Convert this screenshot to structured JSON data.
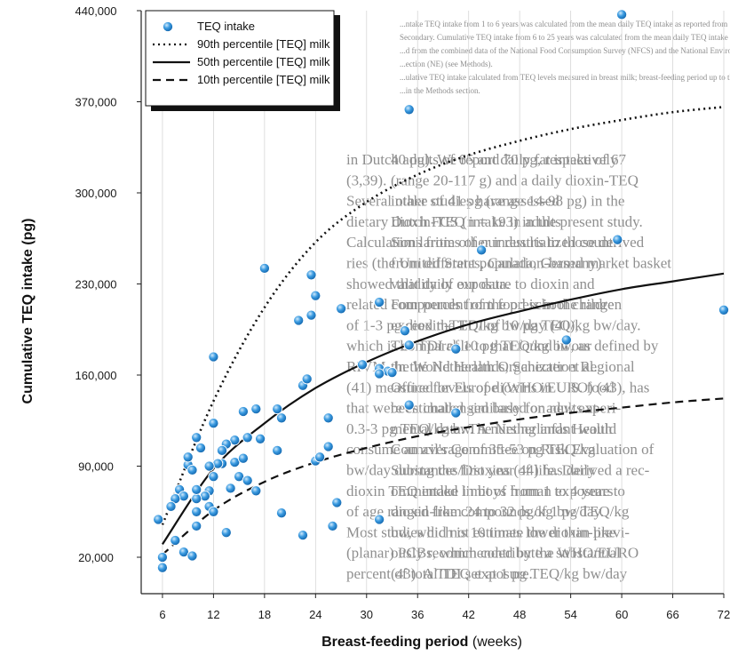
{
  "chart_data": {
    "type": "scatter",
    "xlabel_bold": "Breast-feeding period",
    "xlabel_unit": " (weeks)",
    "ylabel": "Cumulative TEQ intake (pg)",
    "xlim": [
      3.5,
      72
    ],
    "ylim": [
      -8000,
      440000
    ],
    "x_ticks": [
      6,
      12,
      18,
      24,
      30,
      36,
      42,
      48,
      54,
      60,
      66,
      72
    ],
    "x_tick_labels": [
      "6",
      "12",
      "18",
      "24",
      "30",
      "36",
      "42",
      "48",
      "54",
      "60",
      "66",
      "72"
    ],
    "y_ticks": [
      20000,
      90000,
      160000,
      230000,
      300000,
      370000,
      440000
    ],
    "y_tick_labels": [
      "20,000",
      "90,000",
      "160,000",
      "230,000",
      "300,000",
      "370,000",
      "440,000"
    ],
    "legend_position": "top-left",
    "legend": [
      {
        "label": "TEQ intake",
        "style": "marker"
      },
      {
        "label": "90th percentile [TEQ] milk",
        "style": "dotted"
      },
      {
        "label": "50th percentile [TEQ] milk",
        "style": "solid"
      },
      {
        "label": "10th percentile [TEQ] milk",
        "style": "dashed"
      }
    ],
    "series": [
      {
        "name": "TEQ intake",
        "points": [
          [
            60,
            437000
          ],
          [
            35,
            364000
          ],
          [
            43.5,
            256000
          ],
          [
            59.5,
            264000
          ],
          [
            72,
            210000
          ],
          [
            18,
            242000
          ],
          [
            23.5,
            237000
          ],
          [
            24,
            221000
          ],
          [
            23.5,
            206000
          ],
          [
            22,
            202000
          ],
          [
            27,
            211000
          ],
          [
            31.5,
            216000
          ],
          [
            34.5,
            194000
          ],
          [
            35,
            183000
          ],
          [
            40.5,
            180000
          ],
          [
            53.5,
            187000
          ],
          [
            29.5,
            168000
          ],
          [
            31.5,
            165000
          ],
          [
            32.5,
            163000
          ],
          [
            31.5,
            161000
          ],
          [
            33,
            162000
          ],
          [
            12,
            174000
          ],
          [
            22.5,
            152000
          ],
          [
            23,
            157000
          ],
          [
            35,
            137000
          ],
          [
            40.5,
            131000
          ],
          [
            25.5,
            127000
          ],
          [
            12,
            123000
          ],
          [
            19.5,
            134000
          ],
          [
            17,
            134000
          ],
          [
            15.5,
            132000
          ],
          [
            19.5,
            102000
          ],
          [
            20,
            127000
          ],
          [
            16,
            112000
          ],
          [
            17.5,
            111000
          ],
          [
            14.5,
            110000
          ],
          [
            13.5,
            107000
          ],
          [
            13,
            102000
          ],
          [
            14.5,
            93000
          ],
          [
            15,
            82000
          ],
          [
            15.5,
            96000
          ],
          [
            16,
            79000
          ],
          [
            14,
            73000
          ],
          [
            13,
            92000
          ],
          [
            12.5,
            92000
          ],
          [
            11.5,
            90000
          ],
          [
            12,
            82000
          ],
          [
            10.5,
            104000
          ],
          [
            10,
            112000
          ],
          [
            11.5,
            71000
          ],
          [
            11,
            67000
          ],
          [
            11.5,
            59000
          ],
          [
            10,
            55000
          ],
          [
            10,
            65000
          ],
          [
            10,
            72000
          ],
          [
            9,
            91000
          ],
          [
            9,
            97000
          ],
          [
            9.5,
            87000
          ],
          [
            8,
            72000
          ],
          [
            8.5,
            67000
          ],
          [
            10,
            44000
          ],
          [
            12,
            55000
          ],
          [
            13.5,
            39000
          ],
          [
            7.5,
            65000
          ],
          [
            7,
            59000
          ],
          [
            5.5,
            49000
          ],
          [
            7.5,
            33000
          ],
          [
            8.5,
            24000
          ],
          [
            9.5,
            21000
          ],
          [
            6,
            12000
          ],
          [
            6,
            20000
          ],
          [
            17,
            71000
          ],
          [
            20,
            54000
          ],
          [
            24,
            94000
          ],
          [
            24.5,
            97000
          ],
          [
            25.5,
            105000
          ],
          [
            26,
            44000
          ],
          [
            26.5,
            62000
          ],
          [
            22.5,
            37000
          ],
          [
            31.5,
            49000
          ]
        ]
      },
      {
        "name": "90th percentile [TEQ] milk",
        "points": [
          [
            6,
            45000
          ],
          [
            12,
            140000
          ],
          [
            18,
            212000
          ],
          [
            24,
            262000
          ],
          [
            30,
            293000
          ],
          [
            36,
            314000
          ],
          [
            42,
            329000
          ],
          [
            48,
            340000
          ],
          [
            54,
            349000
          ],
          [
            60,
            356000
          ],
          [
            66,
            362000
          ],
          [
            72,
            366000
          ]
        ]
      },
      {
        "name": "50th percentile [TEQ] milk",
        "points": [
          [
            6,
            30000
          ],
          [
            12,
            88000
          ],
          [
            18,
            123000
          ],
          [
            24,
            150000
          ],
          [
            30,
            170000
          ],
          [
            36,
            186000
          ],
          [
            42,
            199000
          ],
          [
            48,
            209000
          ],
          [
            54,
            218000
          ],
          [
            60,
            226000
          ],
          [
            66,
            232000
          ],
          [
            72,
            238000
          ]
        ]
      },
      {
        "name": "10th percentile [TEQ] milk",
        "points": [
          [
            6,
            22000
          ],
          [
            12,
            56000
          ],
          [
            18,
            78000
          ],
          [
            24,
            93000
          ],
          [
            30,
            104000
          ],
          [
            36,
            113000
          ],
          [
            42,
            120000
          ],
          [
            48,
            126000
          ],
          [
            54,
            131000
          ],
          [
            60,
            135000
          ],
          [
            66,
            139000
          ],
          [
            72,
            142000
          ]
        ]
      }
    ]
  },
  "background_text": {
    "footnote_lines": [
      "...ntake TEQ intake from 1 to 6 years was calculated from the mean daily TEQ intake as reported from 1",
      "Secondary. Cumulative TEQ intake from 6 to 25 years was calculated from the mean daily TEQ intake (0.47 pg TEQ",
      "...d from the combined data of the National Food Consumption Survey (NFCS) and the National Environ...",
      "...ection (NE) (see Methods).",
      "...ulative TEQ intake calculated from TEQ levels measured in breast milk; breast-feeding period up to the...",
      "...in the Methods section."
    ],
    "body_lines": [
      "in Dutch adults of 65 and 70 pg, respectively",
      "(3,39).",
      "Several other studies have assessed",
      "dietary dioxin-TEQ intake in adults",
      "Calculations from other industrialized count-",
      "ries (the United States, Canada, Germany)",
      "showed that daily exposure to dioxin and",
      "related compounds from food is in the range",
      "of 1-3 pg dioxin-TEQ/kg bw/day (40),",
      "which is comparable to that found in our",
      "RIVM. In the Netherlands, Schecter et al.",
      "(41) measured levels of dioxins in U.S. food",
      "that were estimated similarly for adults at",
      "0.3-3 pg TEQ/kg bw. A nursing infant would",
      "consume an average of 35-53 pg TEQ/kg",
      "bw/day during the first year of life. Daily",
      "dioxin TEQ intake in boys from 1 to 4 years",
      "of age ranged from 24 to 32 pg/kg bw/day.",
      "Most studies did not estimate the dioxin-like",
      "(planar) PCBs, which contribute a substantial",
      "percent of total TEQ exposure.",
      "40 pg). We report daily fat intake of 67",
      "(range 20-117 g) and a daily dioxin-TEQ",
      "intake of 41 pg (range 14-98 pg) in the",
      "Dutch FCS (n = 193) in the present study.",
      "Similarities of our results to those derived",
      "from different population-based market basket",
      "validity of our data.",
      "Four percent of the preschool children",
      "exceed the TDI of 10 pg TEQ/kg bw/day.",
      "The TDI of 10 pg TEQ/kg bw, as defined by",
      "the World Health Organization Regional",
      "Office for Europe (WHO/EURO) (43), has",
      "been challenged based on new experi-",
      "mental data. The Netherlands Health",
      "Council's Committee on Risk Evaluation of",
      "Substances/Dioxins (44) has derived a rec-",
      "ommended limit of human exposure to",
      "dioxin-like compounds of 1 pg TEQ/kg",
      "bw, which is 10 times lower than previ-",
      "ously recommended by the WHO/EURO",
      "(43). A TDI set at 1 pg TEQ/kg bw/day"
    ]
  }
}
